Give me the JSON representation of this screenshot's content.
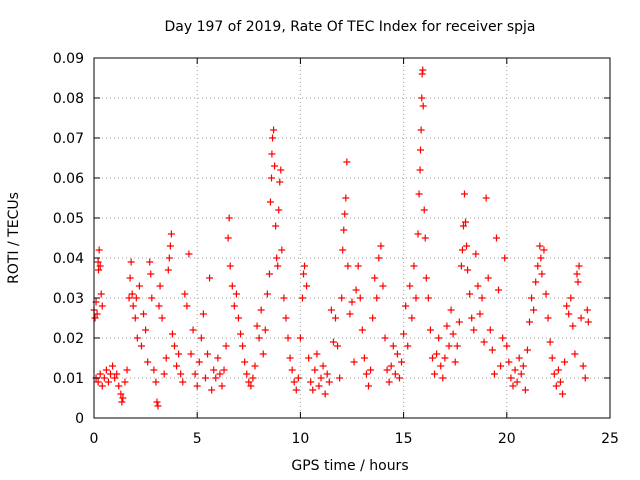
{
  "chart_data": {
    "type": "scatter",
    "title": "Day 197 of 2019, Rate Of TEC Index for receiver spja",
    "xlabel": "GPS time / hours",
    "ylabel": "ROTI / TECUs",
    "xlim": [
      0,
      25
    ],
    "ylim": [
      0,
      0.09
    ],
    "xticks": [
      0,
      5,
      10,
      15,
      20,
      25
    ],
    "yticks": [
      0,
      0.01,
      0.02,
      0.03,
      0.04,
      0.05,
      0.06,
      0.07,
      0.08,
      0.09
    ],
    "xtick_labels": [
      "0",
      "5",
      "10",
      "15",
      "20",
      "25"
    ],
    "ytick_labels": [
      "0",
      "0.01",
      "0.02",
      "0.03",
      "0.04",
      "0.05",
      "0.06",
      "0.07",
      "0.08",
      "0.09"
    ],
    "grid": true,
    "marker": "plus",
    "color": "#ff0000",
    "points": [
      [
        0.0,
        0.027
      ],
      [
        0.05,
        0.025
      ],
      [
        0.1,
        0.029
      ],
      [
        0.15,
        0.026
      ],
      [
        0.2,
        0.039
      ],
      [
        0.22,
        0.037
      ],
      [
        0.25,
        0.042
      ],
      [
        0.3,
        0.038
      ],
      [
        0.35,
        0.031
      ],
      [
        0.4,
        0.028
      ],
      [
        0.1,
        0.01
      ],
      [
        0.2,
        0.009
      ],
      [
        0.3,
        0.011
      ],
      [
        0.4,
        0.008
      ],
      [
        0.5,
        0.01
      ],
      [
        0.6,
        0.012
      ],
      [
        0.7,
        0.009
      ],
      [
        0.8,
        0.011
      ],
      [
        0.9,
        0.013
      ],
      [
        1.0,
        0.01
      ],
      [
        1.1,
        0.011
      ],
      [
        1.2,
        0.008
      ],
      [
        1.3,
        0.006
      ],
      [
        1.35,
        0.004
      ],
      [
        1.4,
        0.005
      ],
      [
        1.5,
        0.009
      ],
      [
        1.6,
        0.012
      ],
      [
        1.7,
        0.03
      ],
      [
        1.75,
        0.035
      ],
      [
        1.8,
        0.039
      ],
      [
        1.85,
        0.031
      ],
      [
        1.9,
        0.028
      ],
      [
        2.0,
        0.025
      ],
      [
        2.05,
        0.03
      ],
      [
        2.1,
        0.02
      ],
      [
        2.2,
        0.033
      ],
      [
        2.3,
        0.018
      ],
      [
        2.4,
        0.026
      ],
      [
        2.5,
        0.022
      ],
      [
        2.6,
        0.014
      ],
      [
        2.7,
        0.039
      ],
      [
        2.75,
        0.036
      ],
      [
        2.8,
        0.03
      ],
      [
        2.9,
        0.012
      ],
      [
        3.0,
        0.009
      ],
      [
        3.05,
        0.004
      ],
      [
        3.1,
        0.003
      ],
      [
        3.15,
        0.028
      ],
      [
        3.2,
        0.033
      ],
      [
        3.3,
        0.025
      ],
      [
        3.4,
        0.011
      ],
      [
        3.5,
        0.015
      ],
      [
        3.6,
        0.037
      ],
      [
        3.65,
        0.04
      ],
      [
        3.7,
        0.043
      ],
      [
        3.75,
        0.046
      ],
      [
        3.8,
        0.021
      ],
      [
        3.9,
        0.018
      ],
      [
        4.0,
        0.013
      ],
      [
        4.1,
        0.016
      ],
      [
        4.2,
        0.011
      ],
      [
        4.3,
        0.009
      ],
      [
        4.4,
        0.031
      ],
      [
        4.5,
        0.028
      ],
      [
        4.6,
        0.041
      ],
      [
        4.7,
        0.016
      ],
      [
        4.8,
        0.022
      ],
      [
        4.9,
        0.011
      ],
      [
        5.0,
        0.008
      ],
      [
        5.1,
        0.014
      ],
      [
        5.2,
        0.02
      ],
      [
        5.3,
        0.026
      ],
      [
        5.4,
        0.01
      ],
      [
        5.5,
        0.016
      ],
      [
        5.6,
        0.035
      ],
      [
        5.7,
        0.007
      ],
      [
        5.8,
        0.012
      ],
      [
        5.9,
        0.01
      ],
      [
        6.0,
        0.015
      ],
      [
        6.1,
        0.011
      ],
      [
        6.2,
        0.008
      ],
      [
        6.3,
        0.012
      ],
      [
        6.4,
        0.018
      ],
      [
        6.5,
        0.045
      ],
      [
        6.55,
        0.05
      ],
      [
        6.6,
        0.038
      ],
      [
        6.7,
        0.033
      ],
      [
        6.8,
        0.028
      ],
      [
        6.9,
        0.031
      ],
      [
        7.0,
        0.025
      ],
      [
        7.1,
        0.021
      ],
      [
        7.2,
        0.018
      ],
      [
        7.3,
        0.014
      ],
      [
        7.4,
        0.011
      ],
      [
        7.5,
        0.009
      ],
      [
        7.6,
        0.008
      ],
      [
        7.7,
        0.01
      ],
      [
        7.8,
        0.013
      ],
      [
        7.9,
        0.023
      ],
      [
        8.0,
        0.02
      ],
      [
        8.1,
        0.027
      ],
      [
        8.2,
        0.016
      ],
      [
        8.3,
        0.022
      ],
      [
        8.4,
        0.031
      ],
      [
        8.5,
        0.036
      ],
      [
        8.55,
        0.054
      ],
      [
        8.6,
        0.06
      ],
      [
        8.62,
        0.066
      ],
      [
        8.65,
        0.07
      ],
      [
        8.7,
        0.072
      ],
      [
        8.75,
        0.063
      ],
      [
        8.8,
        0.048
      ],
      [
        8.85,
        0.04
      ],
      [
        8.9,
        0.038
      ],
      [
        8.95,
        0.052
      ],
      [
        9.0,
        0.059
      ],
      [
        9.05,
        0.062
      ],
      [
        9.1,
        0.042
      ],
      [
        9.2,
        0.03
      ],
      [
        9.3,
        0.025
      ],
      [
        9.4,
        0.02
      ],
      [
        9.5,
        0.015
      ],
      [
        9.6,
        0.012
      ],
      [
        9.7,
        0.009
      ],
      [
        9.8,
        0.007
      ],
      [
        9.9,
        0.01
      ],
      [
        10.0,
        0.02
      ],
      [
        10.1,
        0.03
      ],
      [
        10.15,
        0.036
      ],
      [
        10.2,
        0.038
      ],
      [
        10.3,
        0.033
      ],
      [
        10.4,
        0.015
      ],
      [
        10.5,
        0.009
      ],
      [
        10.6,
        0.007
      ],
      [
        10.7,
        0.012
      ],
      [
        10.8,
        0.016
      ],
      [
        10.9,
        0.008
      ],
      [
        11.0,
        0.01
      ],
      [
        11.1,
        0.013
      ],
      [
        11.2,
        0.006
      ],
      [
        11.3,
        0.011
      ],
      [
        11.4,
        0.009
      ],
      [
        11.5,
        0.027
      ],
      [
        11.6,
        0.019
      ],
      [
        11.7,
        0.025
      ],
      [
        11.8,
        0.018
      ],
      [
        11.9,
        0.01
      ],
      [
        12.0,
        0.03
      ],
      [
        12.05,
        0.042
      ],
      [
        12.1,
        0.047
      ],
      [
        12.15,
        0.051
      ],
      [
        12.2,
        0.055
      ],
      [
        12.25,
        0.064
      ],
      [
        12.3,
        0.038
      ],
      [
        12.4,
        0.026
      ],
      [
        12.5,
        0.029
      ],
      [
        12.6,
        0.014
      ],
      [
        12.7,
        0.032
      ],
      [
        12.8,
        0.038
      ],
      [
        12.9,
        0.03
      ],
      [
        13.0,
        0.022
      ],
      [
        13.1,
        0.015
      ],
      [
        13.2,
        0.011
      ],
      [
        13.3,
        0.008
      ],
      [
        13.4,
        0.012
      ],
      [
        13.5,
        0.025
      ],
      [
        13.6,
        0.035
      ],
      [
        13.7,
        0.03
      ],
      [
        13.8,
        0.04
      ],
      [
        13.9,
        0.043
      ],
      [
        14.0,
        0.033
      ],
      [
        14.1,
        0.02
      ],
      [
        14.2,
        0.012
      ],
      [
        14.3,
        0.009
      ],
      [
        14.4,
        0.013
      ],
      [
        14.5,
        0.018
      ],
      [
        14.6,
        0.011
      ],
      [
        14.7,
        0.016
      ],
      [
        14.8,
        0.01
      ],
      [
        14.9,
        0.014
      ],
      [
        15.0,
        0.021
      ],
      [
        15.1,
        0.028
      ],
      [
        15.2,
        0.018
      ],
      [
        15.3,
        0.033
      ],
      [
        15.4,
        0.025
      ],
      [
        15.5,
        0.038
      ],
      [
        15.6,
        0.03
      ],
      [
        15.7,
        0.046
      ],
      [
        15.75,
        0.056
      ],
      [
        15.8,
        0.062
      ],
      [
        15.82,
        0.067
      ],
      [
        15.85,
        0.072
      ],
      [
        15.88,
        0.08
      ],
      [
        15.9,
        0.086
      ],
      [
        15.93,
        0.087
      ],
      [
        15.95,
        0.078
      ],
      [
        16.0,
        0.052
      ],
      [
        16.05,
        0.045
      ],
      [
        16.1,
        0.035
      ],
      [
        16.2,
        0.03
      ],
      [
        16.3,
        0.022
      ],
      [
        16.4,
        0.015
      ],
      [
        16.5,
        0.011
      ],
      [
        16.6,
        0.016
      ],
      [
        16.7,
        0.02
      ],
      [
        16.8,
        0.013
      ],
      [
        16.9,
        0.01
      ],
      [
        17.0,
        0.015
      ],
      [
        17.1,
        0.023
      ],
      [
        17.2,
        0.018
      ],
      [
        17.3,
        0.027
      ],
      [
        17.4,
        0.021
      ],
      [
        17.5,
        0.014
      ],
      [
        17.6,
        0.018
      ],
      [
        17.7,
        0.024
      ],
      [
        17.8,
        0.038
      ],
      [
        17.85,
        0.042
      ],
      [
        17.9,
        0.048
      ],
      [
        17.95,
        0.056
      ],
      [
        18.0,
        0.049
      ],
      [
        18.05,
        0.043
      ],
      [
        18.1,
        0.037
      ],
      [
        18.2,
        0.031
      ],
      [
        18.3,
        0.025
      ],
      [
        18.4,
        0.022
      ],
      [
        18.5,
        0.041
      ],
      [
        18.6,
        0.033
      ],
      [
        18.7,
        0.026
      ],
      [
        18.8,
        0.03
      ],
      [
        18.9,
        0.019
      ],
      [
        19.0,
        0.055
      ],
      [
        19.1,
        0.035
      ],
      [
        19.2,
        0.022
      ],
      [
        19.3,
        0.017
      ],
      [
        19.4,
        0.011
      ],
      [
        19.5,
        0.045
      ],
      [
        19.6,
        0.032
      ],
      [
        19.7,
        0.013
      ],
      [
        19.8,
        0.02
      ],
      [
        19.9,
        0.04
      ],
      [
        20.0,
        0.018
      ],
      [
        20.1,
        0.014
      ],
      [
        20.2,
        0.01
      ],
      [
        20.3,
        0.008
      ],
      [
        20.4,
        0.012
      ],
      [
        20.5,
        0.009
      ],
      [
        20.6,
        0.015
      ],
      [
        20.7,
        0.011
      ],
      [
        20.8,
        0.013
      ],
      [
        20.9,
        0.007
      ],
      [
        21.0,
        0.017
      ],
      [
        21.1,
        0.024
      ],
      [
        21.2,
        0.03
      ],
      [
        21.3,
        0.027
      ],
      [
        21.4,
        0.034
      ],
      [
        21.5,
        0.038
      ],
      [
        21.6,
        0.043
      ],
      [
        21.65,
        0.04
      ],
      [
        21.7,
        0.036
      ],
      [
        21.8,
        0.042
      ],
      [
        21.9,
        0.031
      ],
      [
        22.0,
        0.025
      ],
      [
        22.1,
        0.019
      ],
      [
        22.2,
        0.015
      ],
      [
        22.3,
        0.011
      ],
      [
        22.4,
        0.008
      ],
      [
        22.5,
        0.012
      ],
      [
        22.6,
        0.009
      ],
      [
        22.7,
        0.006
      ],
      [
        22.8,
        0.014
      ],
      [
        22.9,
        0.028
      ],
      [
        23.0,
        0.026
      ],
      [
        23.1,
        0.03
      ],
      [
        23.2,
        0.023
      ],
      [
        23.3,
        0.016
      ],
      [
        23.4,
        0.036
      ],
      [
        23.45,
        0.034
      ],
      [
        23.5,
        0.038
      ],
      [
        23.6,
        0.025
      ],
      [
        23.7,
        0.013
      ],
      [
        23.8,
        0.01
      ],
      [
        23.9,
        0.027
      ],
      [
        23.95,
        0.024
      ]
    ]
  }
}
